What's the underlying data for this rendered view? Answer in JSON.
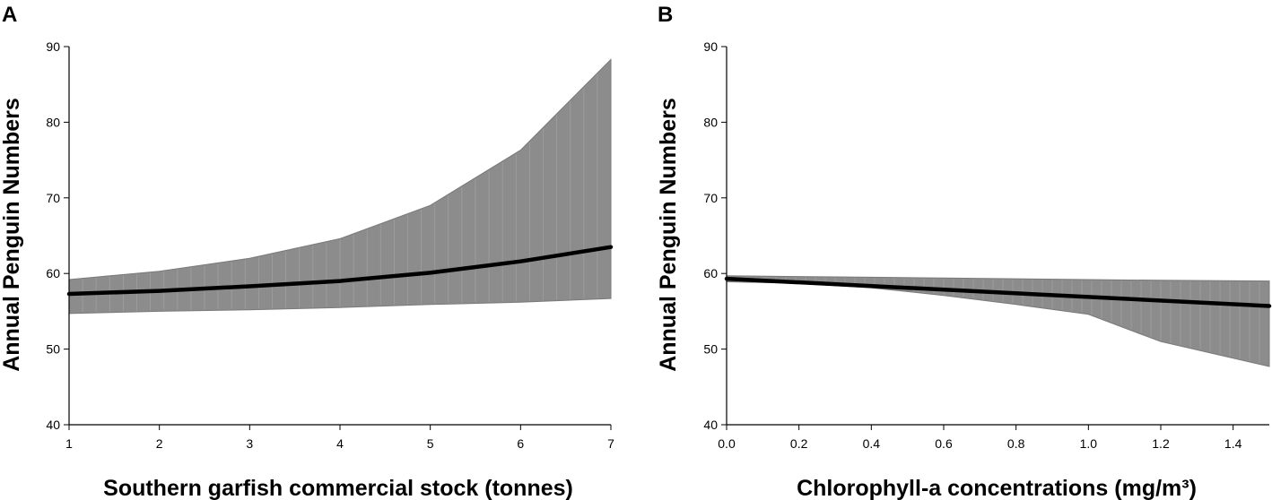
{
  "chart_data": [
    {
      "type": "line",
      "panel_label": "A",
      "xlabel": "Southern garfish commercial stock (tonnes)",
      "ylabel": "Annual Penguin Numbers",
      "xlim": [
        1,
        7
      ],
      "ylim": [
        40,
        90
      ],
      "xticks": [
        "1",
        "2",
        "3",
        "4",
        "5",
        "6",
        "7"
      ],
      "xtick_values": [
        1,
        2,
        3,
        4,
        5,
        6,
        7
      ],
      "yticks": [
        "40",
        "50",
        "60",
        "70",
        "80",
        "90"
      ],
      "ytick_values": [
        40,
        50,
        60,
        70,
        80,
        90
      ],
      "grid": false,
      "series": [
        {
          "name": "fitted",
          "x": [
            1,
            2,
            3,
            4,
            5,
            6,
            7
          ],
          "values": [
            57.3,
            57.7,
            58.3,
            59.0,
            60.1,
            61.6,
            63.5
          ]
        }
      ],
      "confidence_band": {
        "x": [
          1,
          2,
          3,
          4,
          5,
          6,
          7
        ],
        "upper": [
          59.2,
          60.3,
          62.0,
          64.6,
          69.0,
          76.3,
          88.3
        ],
        "lower": [
          54.7,
          55.0,
          55.2,
          55.5,
          55.9,
          56.2,
          56.7
        ]
      }
    },
    {
      "type": "line",
      "panel_label": "B",
      "xlabel": "Chlorophyll-a concentrations (mg/m³)",
      "ylabel": "Annual Penguin Numbers",
      "xlim": [
        0,
        1.5
      ],
      "ylim": [
        40,
        90
      ],
      "xticks": [
        "0.0",
        "0.2",
        "0.4",
        "0.6",
        "0.8",
        "1.0",
        "1.2",
        "1.4"
      ],
      "xtick_values": [
        0,
        0.2,
        0.4,
        0.6,
        0.8,
        1.0,
        1.2,
        1.4
      ],
      "yticks": [
        "40",
        "50",
        "60",
        "70",
        "80",
        "90"
      ],
      "ytick_values": [
        40,
        50,
        60,
        70,
        80,
        90
      ],
      "grid": false,
      "series": [
        {
          "name": "fitted",
          "x": [
            0,
            0.5,
            1.0,
            1.5
          ],
          "values": [
            59.3,
            58.1,
            56.9,
            55.7
          ]
        }
      ],
      "confidence_band": {
        "x": [
          0,
          0.2,
          0.4,
          0.6,
          0.8,
          1.0,
          1.2,
          1.5
        ],
        "upper": [
          59.7,
          59.6,
          59.5,
          59.4,
          59.3,
          59.2,
          59.1,
          59.0
        ],
        "lower": [
          58.9,
          58.7,
          58.1,
          57.1,
          55.9,
          54.6,
          51.0,
          47.7
        ]
      }
    }
  ]
}
